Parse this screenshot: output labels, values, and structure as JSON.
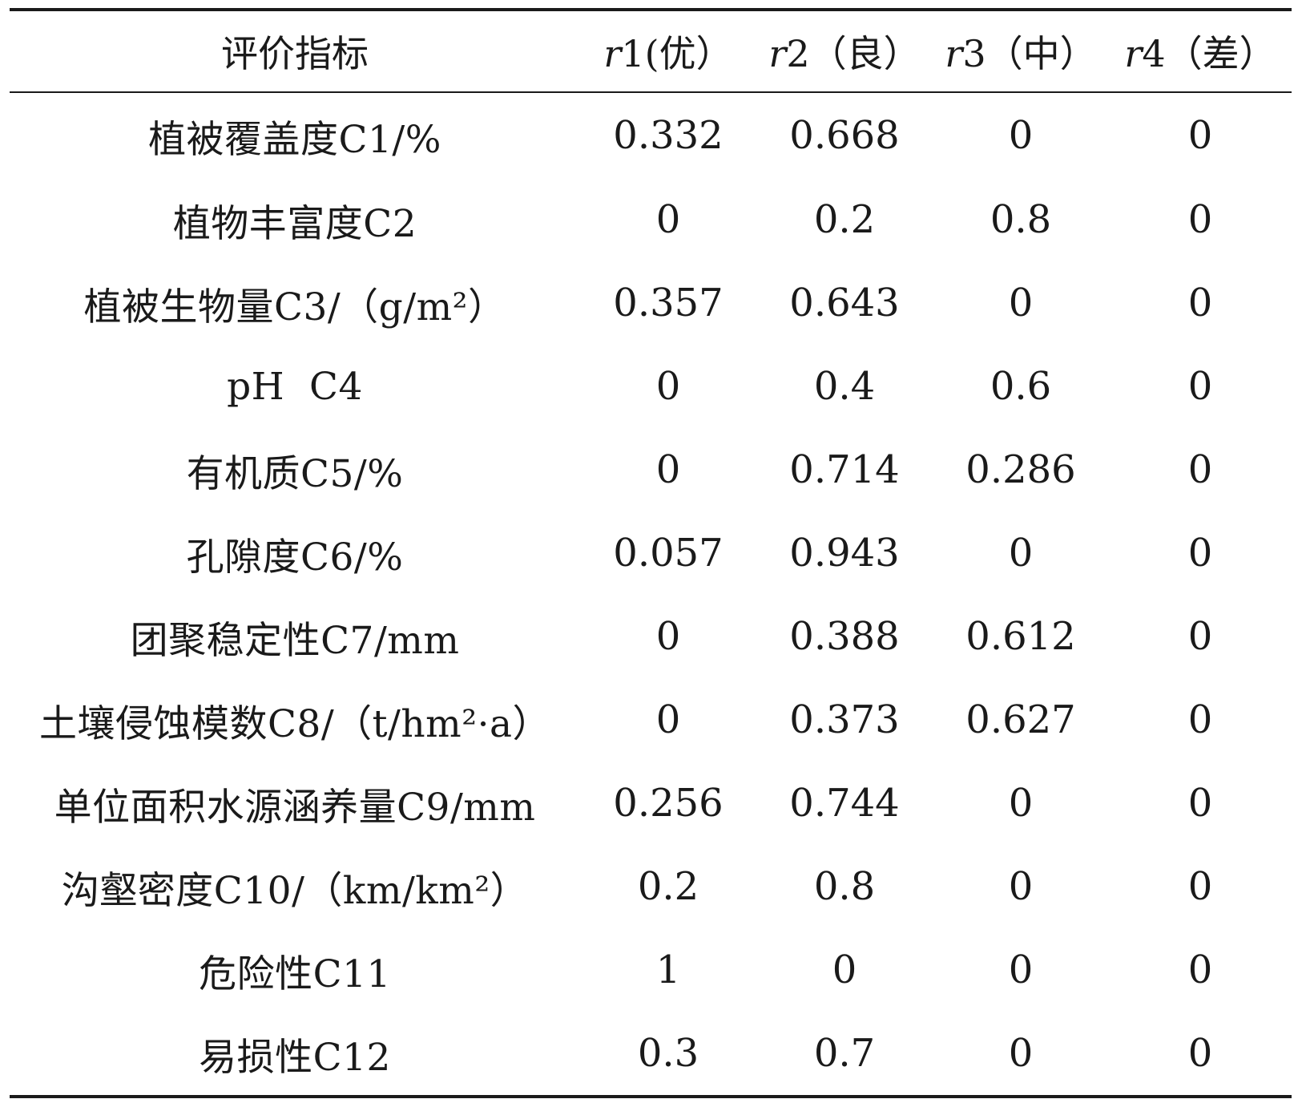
{
  "table": {
    "header": {
      "indicator": "评价指标",
      "columns": [
        {
          "var": "r",
          "rest": "1(优）"
        },
        {
          "var": "r",
          "rest": "2（良）"
        },
        {
          "var": "r",
          "rest": "3（中）"
        },
        {
          "var": "r",
          "rest": "4（差）"
        }
      ]
    },
    "rows": [
      {
        "name": "植被覆盖度C1/%",
        "values": [
          "0.332",
          "0.668",
          "0",
          "0"
        ]
      },
      {
        "name": "植物丰富度C2",
        "values": [
          "0",
          "0.2",
          "0.8",
          "0"
        ]
      },
      {
        "name": "植被生物量C3/（g/m²）",
        "values": [
          "0.357",
          "0.643",
          "0",
          "0"
        ]
      },
      {
        "name": "pH  C4",
        "values": [
          "0",
          "0.4",
          "0.6",
          "0"
        ]
      },
      {
        "name": "有机质C5/%",
        "values": [
          "0",
          "0.714",
          "0.286",
          "0"
        ]
      },
      {
        "name": "孔隙度C6/%",
        "values": [
          "0.057",
          "0.943",
          "0",
          "0"
        ]
      },
      {
        "name": "团聚稳定性C7/mm",
        "values": [
          "0",
          "0.388",
          "0.612",
          "0"
        ]
      },
      {
        "name": "土壤侵蚀模数C8/（t/hm²·a）",
        "values": [
          "0",
          "0.373",
          "0.627",
          "0"
        ]
      },
      {
        "name": "单位面积水源涵养量C9/mm",
        "values": [
          "0.256",
          "0.744",
          "0",
          "0"
        ]
      },
      {
        "name": "沟壑密度C10/（km/km²）",
        "values": [
          "0.2",
          "0.8",
          "0",
          "0"
        ]
      },
      {
        "name": "危险性C11",
        "values": [
          "1",
          "0",
          "0",
          "0"
        ]
      },
      {
        "name": "易损性C12",
        "values": [
          "0.3",
          "0.7",
          "0",
          "0"
        ]
      }
    ]
  }
}
